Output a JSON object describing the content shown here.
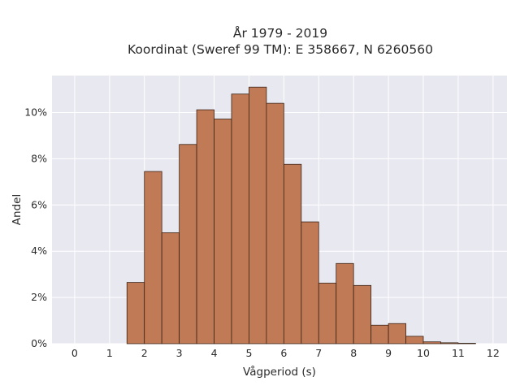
{
  "chart_data": {
    "type": "bar",
    "title_line1": "År 1979 - 2019",
    "title_line2": "Koordinat (Sweref 99 TM): E 358667, N 6260560",
    "xlabel": "Vågperiod (s)",
    "ylabel": "Andel",
    "bin_width": 0.5,
    "bin_start": 0,
    "values": [
      0.0,
      0.0,
      0.0,
      2.65,
      7.45,
      4.8,
      8.62,
      10.12,
      9.72,
      10.8,
      11.1,
      10.4,
      7.76,
      5.27,
      2.62,
      3.47,
      2.52,
      0.8,
      0.87,
      0.32,
      0.08,
      0.04,
      0.02,
      0.0,
      0.0
    ],
    "xlim": [
      -0.65,
      12.4
    ],
    "ylim": [
      0,
      11.6
    ],
    "x_ticks": [
      "0",
      "1",
      "2",
      "3",
      "4",
      "5",
      "6",
      "7",
      "8",
      "9",
      "10",
      "11",
      "12"
    ],
    "y_ticks": [
      "0%",
      "2%",
      "4%",
      "6%",
      "8%",
      "10%"
    ],
    "grid": true,
    "colors": {
      "bar_fill": "#c07a55",
      "bar_stroke": "#3a2418",
      "plot_bg": "#e8e8f0",
      "grid": "#ffffff"
    }
  }
}
